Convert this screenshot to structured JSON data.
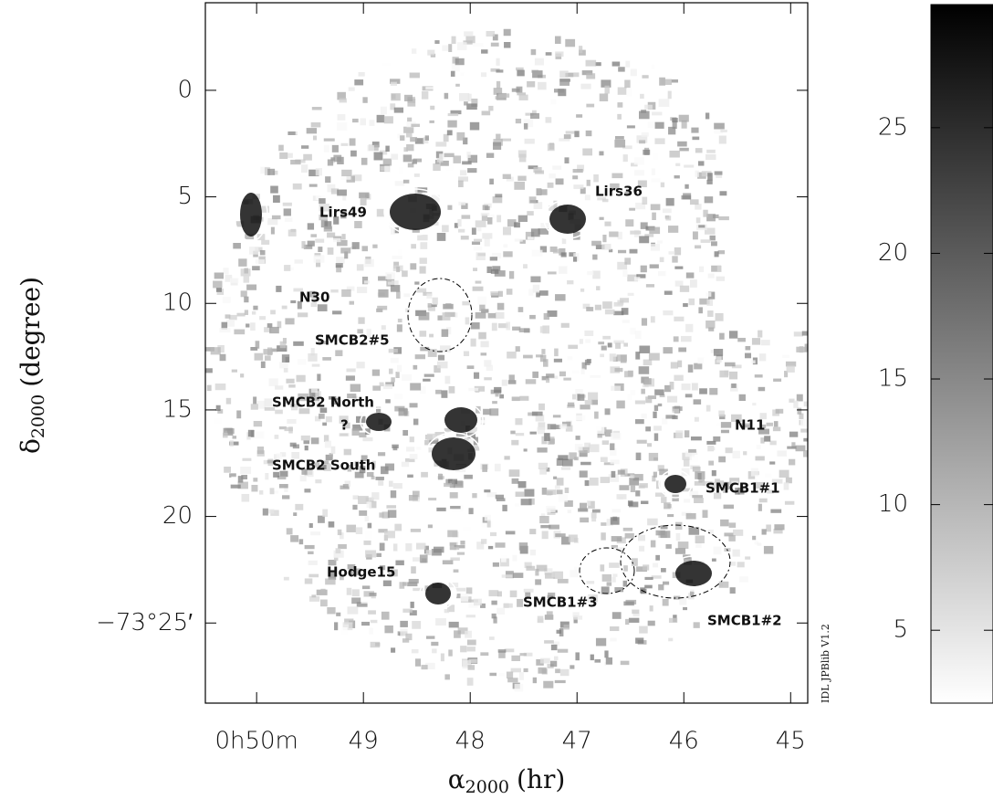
{
  "chart_data": {
    "type": "image",
    "xlabel_symbol": "α",
    "xlabel_sub": "2000",
    "xlabel_unit": "(hr)",
    "ylabel_symbol": "δ",
    "ylabel_sub": "2000",
    "ylabel_unit": "(degree)",
    "xlim": [
      50.48,
      44.84
    ],
    "xticks": [
      {
        "value": 50,
        "label": "0h50m"
      },
      49,
      48,
      47,
      46,
      45
    ],
    "ylim": [
      -4.11,
      28.76
    ],
    "yticks": [
      0,
      5,
      10,
      15,
      20,
      {
        "value": 25,
        "label": "−73°25′"
      }
    ],
    "clim": [
      2.1,
      29.9
    ],
    "cticks": [
      5,
      10,
      15,
      20,
      25
    ],
    "colormap": [
      "#ffffff",
      "#000000"
    ],
    "annotations": [
      "Lirs49",
      "Lirs36",
      "N30",
      "SMCB2#5",
      "SMCB2 North",
      "?",
      "SMCB2 South",
      "N11",
      "SMCB1#1",
      "Hodge15",
      "SMCB1#3",
      "SMCB1#2"
    ],
    "credit": "IDL JPBlib V1.2"
  }
}
